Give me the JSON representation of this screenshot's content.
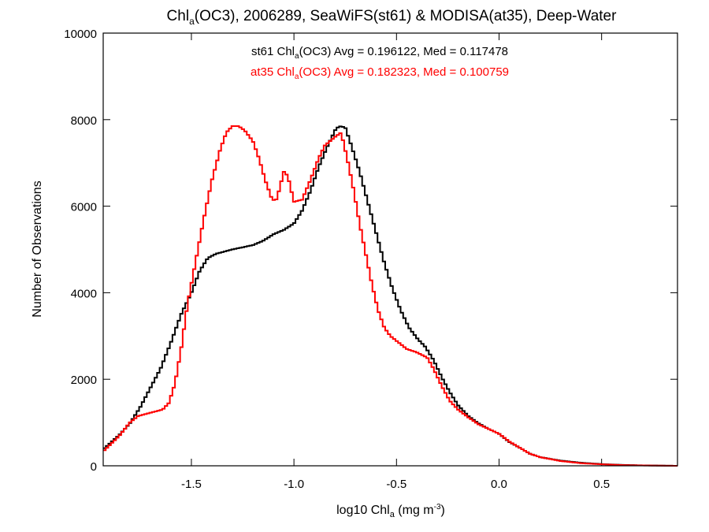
{
  "chart_data": {
    "type": "line",
    "title_parts": [
      "Chl",
      "a",
      "(OC3), 2006289, SeaWiFS(st61) & MODISA(at35), Deep-Water"
    ],
    "xlabel_parts": [
      "log10 Chl",
      "a",
      " (mg m",
      "-3",
      ")"
    ],
    "ylabel": "Number of Observations",
    "xlim": [
      -1.93,
      0.87
    ],
    "ylim": [
      0,
      10000
    ],
    "x_ticks": [
      -1.5,
      -1.0,
      -0.5,
      0.0,
      0.5
    ],
    "x_tick_labels": [
      "-1.5",
      "-1.0",
      "-0.5",
      "0.0",
      "0.5"
    ],
    "y_ticks": [
      0,
      2000,
      4000,
      6000,
      8000,
      10000
    ],
    "y_tick_labels": [
      "0",
      "2000",
      "4000",
      "6000",
      "8000",
      "10000"
    ],
    "grid": false,
    "series": [
      {
        "name": "st61",
        "color": "#000000",
        "stat_parts": [
          "st61 Chl",
          "a",
          "(OC3) Avg = 0.196122, Med = 0.117478"
        ],
        "points": [
          [
            -1.93,
            380
          ],
          [
            -1.85,
            720
          ],
          [
            -1.8,
            980
          ],
          [
            -1.75,
            1350
          ],
          [
            -1.7,
            1800
          ],
          [
            -1.65,
            2250
          ],
          [
            -1.6,
            2850
          ],
          [
            -1.55,
            3500
          ],
          [
            -1.5,
            4000
          ],
          [
            -1.46,
            4500
          ],
          [
            -1.42,
            4800
          ],
          [
            -1.38,
            4900
          ],
          [
            -1.34,
            4950
          ],
          [
            -1.3,
            5000
          ],
          [
            -1.25,
            5050
          ],
          [
            -1.2,
            5100
          ],
          [
            -1.15,
            5200
          ],
          [
            -1.1,
            5350
          ],
          [
            -1.05,
            5450
          ],
          [
            -1.0,
            5600
          ],
          [
            -0.96,
            5900
          ],
          [
            -0.92,
            6350
          ],
          [
            -0.88,
            6900
          ],
          [
            -0.84,
            7350
          ],
          [
            -0.8,
            7750
          ],
          [
            -0.78,
            7850
          ],
          [
            -0.75,
            7820
          ],
          [
            -0.72,
            7400
          ],
          [
            -0.68,
            6800
          ],
          [
            -0.64,
            6100
          ],
          [
            -0.6,
            5400
          ],
          [
            -0.56,
            4700
          ],
          [
            -0.52,
            4100
          ],
          [
            -0.48,
            3600
          ],
          [
            -0.44,
            3200
          ],
          [
            -0.4,
            2950
          ],
          [
            -0.36,
            2750
          ],
          [
            -0.32,
            2450
          ],
          [
            -0.28,
            2050
          ],
          [
            -0.24,
            1700
          ],
          [
            -0.2,
            1400
          ],
          [
            -0.15,
            1150
          ],
          [
            -0.1,
            980
          ],
          [
            -0.05,
            850
          ],
          [
            0.0,
            740
          ],
          [
            0.05,
            550
          ],
          [
            0.1,
            420
          ],
          [
            0.15,
            280
          ],
          [
            0.2,
            200
          ],
          [
            0.3,
            120
          ],
          [
            0.4,
            70
          ],
          [
            0.5,
            40
          ],
          [
            0.6,
            20
          ],
          [
            0.7,
            10
          ],
          [
            0.87,
            0
          ]
        ]
      },
      {
        "name": "at35",
        "color": "#ff0000",
        "stat_parts": [
          "at35 Chl",
          "a",
          "(OC3) Avg = 0.182323, Med = 0.100759"
        ],
        "points": [
          [
            -1.93,
            330
          ],
          [
            -1.85,
            700
          ],
          [
            -1.8,
            1000
          ],
          [
            -1.76,
            1150
          ],
          [
            -1.72,
            1200
          ],
          [
            -1.68,
            1250
          ],
          [
            -1.64,
            1300
          ],
          [
            -1.61,
            1450
          ],
          [
            -1.58,
            1900
          ],
          [
            -1.55,
            2700
          ],
          [
            -1.52,
            3700
          ],
          [
            -1.48,
            4700
          ],
          [
            -1.44,
            5700
          ],
          [
            -1.4,
            6600
          ],
          [
            -1.36,
            7300
          ],
          [
            -1.33,
            7700
          ],
          [
            -1.3,
            7850
          ],
          [
            -1.27,
            7850
          ],
          [
            -1.24,
            7750
          ],
          [
            -1.2,
            7500
          ],
          [
            -1.17,
            7100
          ],
          [
            -1.14,
            6600
          ],
          [
            -1.11,
            6200
          ],
          [
            -1.09,
            6100
          ],
          [
            -1.07,
            6400
          ],
          [
            -1.05,
            6800
          ],
          [
            -1.03,
            6700
          ],
          [
            -1.0,
            6100
          ],
          [
            -0.96,
            6150
          ],
          [
            -0.92,
            6600
          ],
          [
            -0.88,
            7100
          ],
          [
            -0.85,
            7400
          ],
          [
            -0.8,
            7600
          ],
          [
            -0.77,
            7700
          ],
          [
            -0.74,
            7100
          ],
          [
            -0.71,
            6400
          ],
          [
            -0.68,
            5600
          ],
          [
            -0.65,
            4900
          ],
          [
            -0.62,
            4200
          ],
          [
            -0.59,
            3600
          ],
          [
            -0.56,
            3200
          ],
          [
            -0.53,
            3000
          ],
          [
            -0.49,
            2850
          ],
          [
            -0.45,
            2700
          ],
          [
            -0.4,
            2620
          ],
          [
            -0.35,
            2500
          ],
          [
            -0.32,
            2250
          ],
          [
            -0.28,
            1850
          ],
          [
            -0.24,
            1500
          ],
          [
            -0.2,
            1300
          ],
          [
            -0.15,
            1120
          ],
          [
            -0.1,
            960
          ],
          [
            -0.05,
            850
          ],
          [
            0.0,
            740
          ],
          [
            0.05,
            560
          ],
          [
            0.1,
            420
          ],
          [
            0.15,
            280
          ],
          [
            0.2,
            200
          ],
          [
            0.3,
            110
          ],
          [
            0.4,
            60
          ],
          [
            0.5,
            35
          ],
          [
            0.6,
            15
          ],
          [
            0.7,
            8
          ],
          [
            0.87,
            0
          ]
        ]
      }
    ]
  }
}
